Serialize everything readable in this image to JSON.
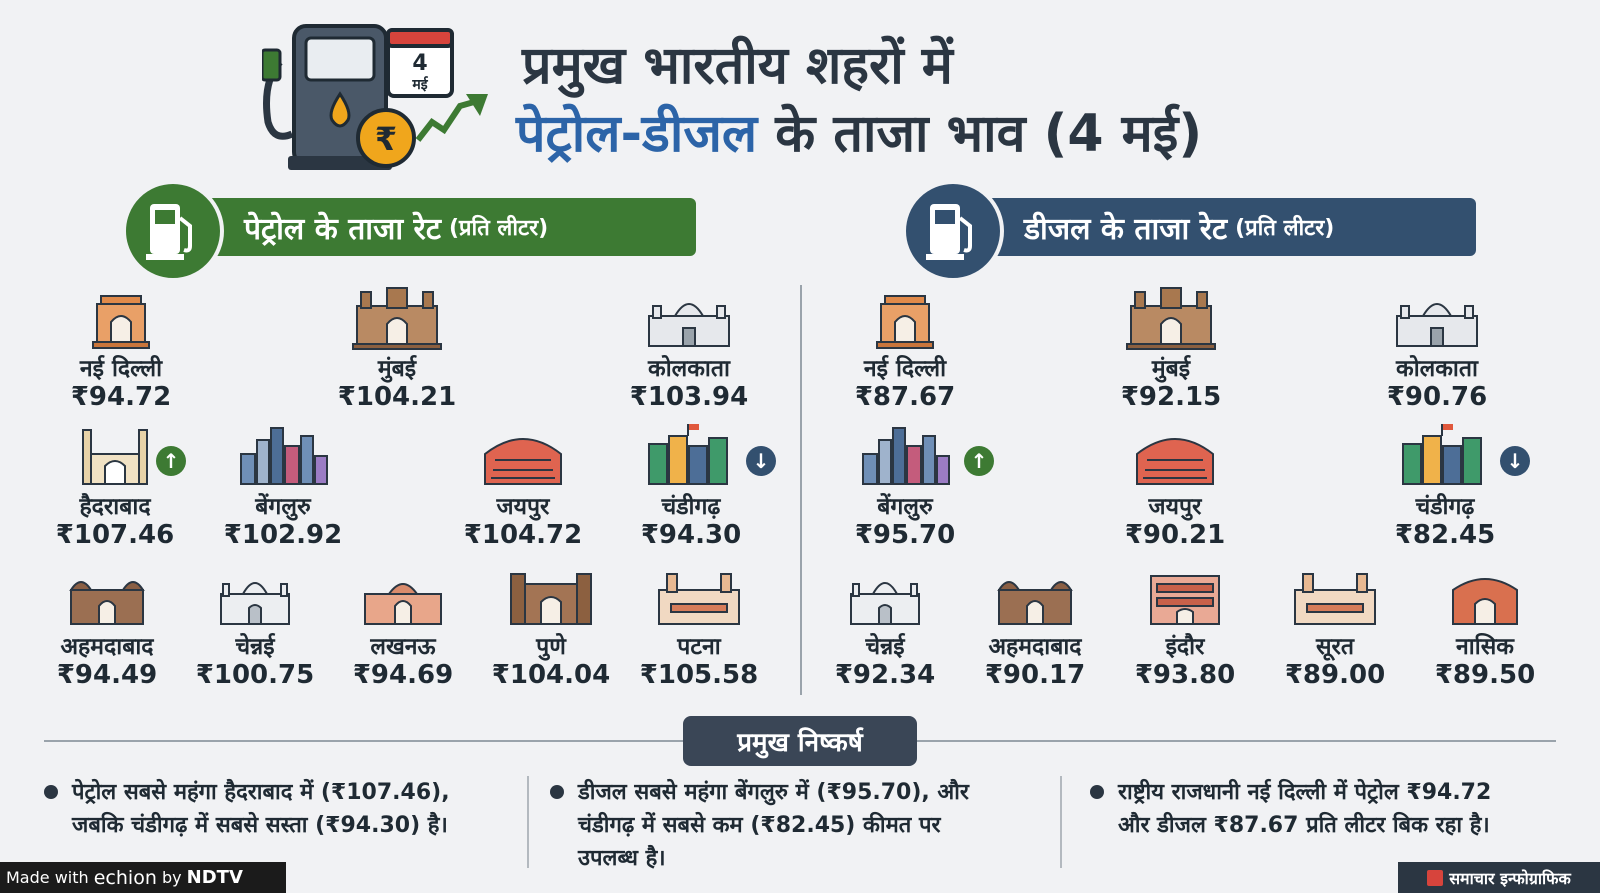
{
  "header": {
    "calendar_day": "4",
    "calendar_month": "मई",
    "rupee_symbol": "₹",
    "title_line1": "प्रमुख भारतीय शहरों में",
    "title_line2_highlight": "पेट्रोल-डीजल",
    "title_line2_rest": " के ताजा भाव (4 मई)"
  },
  "petrol": {
    "heading": "पेट्रोल के ताजा रेट",
    "heading_sub": "(प्रति लीटर)",
    "color": "#3d7a33",
    "cities": [
      {
        "name": "नई दिल्ली",
        "price": "₹94.72",
        "icon": "india-gate"
      },
      {
        "name": "मुंबई",
        "price": "₹104.21",
        "icon": "gateway-of-india"
      },
      {
        "name": "कोलकाता",
        "price": "₹103.94",
        "icon": "victoria-memorial"
      },
      {
        "name": "हैदराबाद",
        "price": "₹107.46",
        "icon": "charminar",
        "trend": "up"
      },
      {
        "name": "बेंगलुरु",
        "price": "₹102.92",
        "icon": "city-skyline"
      },
      {
        "name": "जयपुर",
        "price": "₹104.72",
        "icon": "hawa-mahal"
      },
      {
        "name": "चंडीगढ़",
        "price": "₹94.30",
        "icon": "city-buildings",
        "trend": "down"
      },
      {
        "name": "अहमदाबाद",
        "price": "₹94.49",
        "icon": "mosque"
      },
      {
        "name": "चेन्नई",
        "price": "₹100.75",
        "icon": "palace"
      },
      {
        "name": "लखनऊ",
        "price": "₹94.69",
        "icon": "imambara"
      },
      {
        "name": "पुणे",
        "price": "₹104.04",
        "icon": "fort"
      },
      {
        "name": "पटना",
        "price": "₹105.58",
        "icon": "heritage-building"
      }
    ]
  },
  "diesel": {
    "heading": "डीजल के ताजा रेट",
    "heading_sub": "(प्रति लीटर)",
    "color": "#33506f",
    "cities": [
      {
        "name": "नई दिल्ली",
        "price": "₹87.67",
        "icon": "india-gate"
      },
      {
        "name": "मुंबई",
        "price": "₹92.15",
        "icon": "gateway-of-india"
      },
      {
        "name": "कोलकाता",
        "price": "₹90.76",
        "icon": "victoria-memorial"
      },
      {
        "name": "बेंगलुरु",
        "price": "₹95.70",
        "icon": "city-skyline",
        "trend": "up"
      },
      {
        "name": "जयपुर",
        "price": "₹90.21",
        "icon": "hawa-mahal"
      },
      {
        "name": "चंडीगढ़",
        "price": "₹82.45",
        "icon": "city-buildings",
        "trend": "down"
      },
      {
        "name": "चेन्नई",
        "price": "₹92.34",
        "icon": "palace"
      },
      {
        "name": "अहमदाबाद",
        "price": "₹90.17",
        "icon": "mosque"
      },
      {
        "name": "इंदौर",
        "price": "₹93.80",
        "icon": "rajwada"
      },
      {
        "name": "सूरत",
        "price": "₹89.00",
        "icon": "heritage-building"
      },
      {
        "name": "नासिक",
        "price": "₹89.50",
        "icon": "temple-gate"
      }
    ]
  },
  "arrows": {
    "up": "↑",
    "down": "↓"
  },
  "findings": {
    "heading": "प्रमुख निष्कर्ष",
    "items": [
      {
        "line1": "पेट्रोल सबसे महंगा हैदराबाद में (₹107.46),",
        "line2": "जबकि चंडीगढ़ में सबसे सस्ता (₹94.30) है।",
        "line3": ""
      },
      {
        "line1": "डीजल सबसे महंगा बेंगलुरु में (₹95.70), और",
        "line2": "चंडीगढ़ में सबसे कम (₹82.45) कीमत पर",
        "line3": "उपलब्ध है।"
      },
      {
        "line1": "राष्ट्रीय राजधानी नई दिल्ली में पेट्रोल ₹94.72",
        "line2": "और डीजल ₹87.67 प्रति लीटर बिक रहा है।",
        "line3": ""
      }
    ]
  },
  "footer": {
    "made_with": "Made with",
    "brand": "echion",
    "by": "by",
    "publisher": "NDTV",
    "tag": "समाचार इन्फोग्राफिक"
  }
}
